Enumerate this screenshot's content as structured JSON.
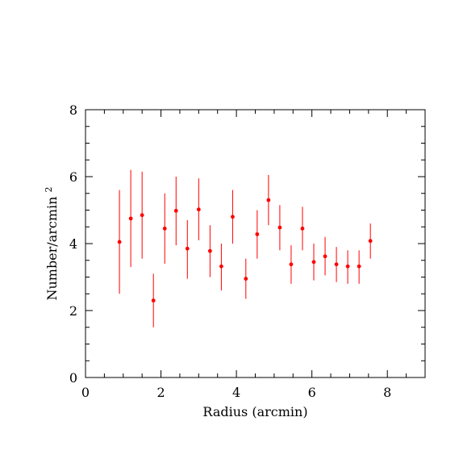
{
  "chart_data": {
    "type": "scatter",
    "title": "",
    "xlabel": "Radius (arcmin)",
    "ylabel_text": "Number/arcmin",
    "ylabel_sup": "2",
    "xlim": [
      0,
      9
    ],
    "ylim": [
      0,
      8
    ],
    "xticks": [
      0,
      2,
      4,
      6,
      8
    ],
    "yticks": [
      0,
      2,
      4,
      6,
      8
    ],
    "xtick_labels": [
      "0",
      "2",
      "4",
      "6",
      "8"
    ],
    "ytick_labels": [
      "0",
      "2",
      "4",
      "6",
      "8"
    ],
    "x_minor_step": 0.5,
    "y_minor_step": 0.5,
    "grid": false,
    "point_color": "#ff0000",
    "errorbar_color": "#ff0000",
    "points": [
      {
        "x": 0.9,
        "y": 4.05,
        "lo": 2.5,
        "hi": 5.6
      },
      {
        "x": 1.2,
        "y": 4.75,
        "lo": 3.3,
        "hi": 6.2
      },
      {
        "x": 1.5,
        "y": 4.85,
        "lo": 3.55,
        "hi": 6.15
      },
      {
        "x": 1.8,
        "y": 2.3,
        "lo": 1.5,
        "hi": 3.1
      },
      {
        "x": 2.1,
        "y": 4.45,
        "lo": 3.4,
        "hi": 5.5
      },
      {
        "x": 2.4,
        "y": 4.98,
        "lo": 3.95,
        "hi": 6.0
      },
      {
        "x": 2.7,
        "y": 3.85,
        "lo": 2.95,
        "hi": 4.7
      },
      {
        "x": 3.0,
        "y": 5.02,
        "lo": 4.1,
        "hi": 5.95
      },
      {
        "x": 3.3,
        "y": 3.78,
        "lo": 3.0,
        "hi": 4.55
      },
      {
        "x": 3.6,
        "y": 3.32,
        "lo": 2.6,
        "hi": 4.0
      },
      {
        "x": 3.9,
        "y": 4.8,
        "lo": 4.0,
        "hi": 5.6
      },
      {
        "x": 4.25,
        "y": 2.95,
        "lo": 2.35,
        "hi": 3.55
      },
      {
        "x": 4.55,
        "y": 4.28,
        "lo": 3.55,
        "hi": 5.0
      },
      {
        "x": 4.85,
        "y": 5.3,
        "lo": 4.55,
        "hi": 6.05
      },
      {
        "x": 5.15,
        "y": 4.48,
        "lo": 3.8,
        "hi": 5.15
      },
      {
        "x": 5.45,
        "y": 3.38,
        "lo": 2.8,
        "hi": 3.95
      },
      {
        "x": 5.75,
        "y": 4.45,
        "lo": 3.8,
        "hi": 5.1
      },
      {
        "x": 6.05,
        "y": 3.45,
        "lo": 2.9,
        "hi": 4.0
      },
      {
        "x": 6.35,
        "y": 3.62,
        "lo": 3.05,
        "hi": 4.2
      },
      {
        "x": 6.65,
        "y": 3.38,
        "lo": 2.85,
        "hi": 3.9
      },
      {
        "x": 6.95,
        "y": 3.32,
        "lo": 2.8,
        "hi": 3.8
      },
      {
        "x": 7.25,
        "y": 3.32,
        "lo": 2.8,
        "hi": 3.8
      },
      {
        "x": 7.55,
        "y": 4.08,
        "lo": 3.55,
        "hi": 4.6
      }
    ]
  }
}
